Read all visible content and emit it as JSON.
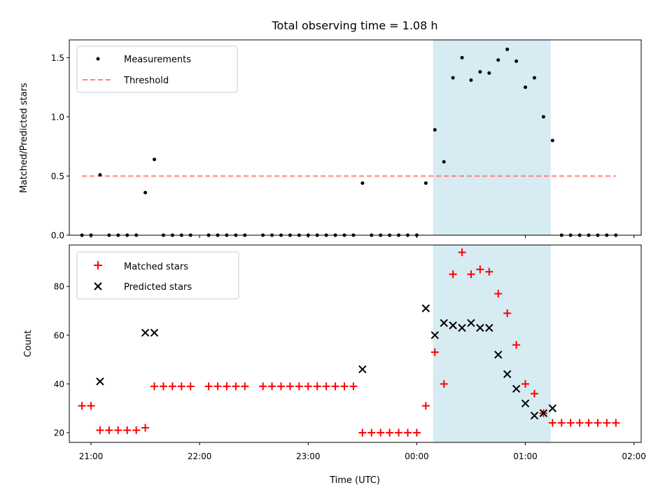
{
  "chart_data": [
    {
      "type": "scatter",
      "title": "Total observing time = 1.08 h",
      "ylabel": "Matched/Predicted stars",
      "xlabel": "",
      "ylim": [
        0,
        1.65
      ],
      "yticks": [
        0.0,
        0.5,
        1.0,
        1.5
      ],
      "ytick_labels": [
        "0.0",
        "0.5",
        "1.0",
        "1.5"
      ],
      "x_unit": "hours after 21:00 UTC",
      "x_range": [
        "20:48",
        "02:04"
      ],
      "xtick_labels": [
        "21:00",
        "22:00",
        "23:00",
        "00:00",
        "01:00",
        "02:00"
      ],
      "shaded_interval": [
        "00:09",
        "01:14"
      ],
      "shade_color": "#add8e6",
      "legend_position": "upper left",
      "series": [
        {
          "name": "Measurements",
          "marker": "dot",
          "color": "#000000",
          "points": [
            [
              "20:55",
              0.0
            ],
            [
              "21:00",
              0.0
            ],
            [
              "21:05",
              0.51
            ],
            [
              "21:10",
              0.0
            ],
            [
              "21:15",
              0.0
            ],
            [
              "21:20",
              0.0
            ],
            [
              "21:25",
              0.0
            ],
            [
              "21:30",
              0.36
            ],
            [
              "21:35",
              0.64
            ],
            [
              "21:40",
              0.0
            ],
            [
              "21:45",
              0.0
            ],
            [
              "21:50",
              0.0
            ],
            [
              "21:55",
              0.0
            ],
            [
              "22:05",
              0.0
            ],
            [
              "22:10",
              0.0
            ],
            [
              "22:15",
              0.0
            ],
            [
              "22:20",
              0.0
            ],
            [
              "22:25",
              0.0
            ],
            [
              "22:35",
              0.0
            ],
            [
              "22:40",
              0.0
            ],
            [
              "22:45",
              0.0
            ],
            [
              "22:50",
              0.0
            ],
            [
              "22:55",
              0.0
            ],
            [
              "23:00",
              0.0
            ],
            [
              "23:05",
              0.0
            ],
            [
              "23:10",
              0.0
            ],
            [
              "23:15",
              0.0
            ],
            [
              "23:20",
              0.0
            ],
            [
              "23:25",
              0.0
            ],
            [
              "23:30",
              0.44
            ],
            [
              "23:35",
              0.0
            ],
            [
              "23:40",
              0.0
            ],
            [
              "23:45",
              0.0
            ],
            [
              "23:50",
              0.0
            ],
            [
              "23:55",
              0.0
            ],
            [
              "00:00",
              0.0
            ],
            [
              "00:05",
              0.44
            ],
            [
              "00:10",
              0.89
            ],
            [
              "00:15",
              0.62
            ],
            [
              "00:20",
              1.33
            ],
            [
              "00:25",
              1.5
            ],
            [
              "00:30",
              1.31
            ],
            [
              "00:35",
              1.38
            ],
            [
              "00:40",
              1.37
            ],
            [
              "00:45",
              1.48
            ],
            [
              "00:50",
              1.57
            ],
            [
              "00:55",
              1.47
            ],
            [
              "01:00",
              1.25
            ],
            [
              "01:05",
              1.33
            ],
            [
              "01:10",
              1.0
            ],
            [
              "01:15",
              0.8
            ],
            [
              "01:20",
              0.0
            ],
            [
              "01:25",
              0.0
            ],
            [
              "01:30",
              0.0
            ],
            [
              "01:35",
              0.0
            ],
            [
              "01:40",
              0.0
            ],
            [
              "01:45",
              0.0
            ],
            [
              "01:50",
              0.0
            ]
          ]
        },
        {
          "name": "Threshold",
          "marker": "dashed-line",
          "color": "#ff7f7f",
          "points": [
            [
              "20:55",
              0.5
            ],
            [
              "01:50",
              0.5
            ]
          ]
        }
      ]
    },
    {
      "type": "scatter",
      "title": "",
      "ylabel": "Count",
      "xlabel": "Time (UTC)",
      "ylim": [
        16,
        97
      ],
      "yticks": [
        20,
        40,
        60,
        80
      ],
      "ytick_labels": [
        "20",
        "40",
        "60",
        "80"
      ],
      "x_unit": "hours after 21:00 UTC",
      "x_range": [
        "20:48",
        "02:04"
      ],
      "xtick_labels": [
        "21:00",
        "22:00",
        "23:00",
        "00:00",
        "01:00",
        "02:00"
      ],
      "shaded_interval": [
        "00:09",
        "01:14"
      ],
      "shade_color": "#add8e6",
      "legend_position": "upper left",
      "series": [
        {
          "name": "Matched stars",
          "marker": "plus",
          "color": "#ff0000",
          "points": [
            [
              "20:55",
              31
            ],
            [
              "21:00",
              31
            ],
            [
              "21:05",
              21
            ],
            [
              "21:10",
              21
            ],
            [
              "21:15",
              21
            ],
            [
              "21:20",
              21
            ],
            [
              "21:25",
              21
            ],
            [
              "21:30",
              22
            ],
            [
              "21:35",
              39
            ],
            [
              "21:40",
              39
            ],
            [
              "21:45",
              39
            ],
            [
              "21:50",
              39
            ],
            [
              "21:55",
              39
            ],
            [
              "22:05",
              39
            ],
            [
              "22:10",
              39
            ],
            [
              "22:15",
              39
            ],
            [
              "22:20",
              39
            ],
            [
              "22:25",
              39
            ],
            [
              "22:35",
              39
            ],
            [
              "22:40",
              39
            ],
            [
              "22:45",
              39
            ],
            [
              "22:50",
              39
            ],
            [
              "22:55",
              39
            ],
            [
              "23:00",
              39
            ],
            [
              "23:05",
              39
            ],
            [
              "23:10",
              39
            ],
            [
              "23:15",
              39
            ],
            [
              "23:20",
              39
            ],
            [
              "23:25",
              39
            ],
            [
              "23:30",
              20
            ],
            [
              "23:35",
              20
            ],
            [
              "23:40",
              20
            ],
            [
              "23:45",
              20
            ],
            [
              "23:50",
              20
            ],
            [
              "23:55",
              20
            ],
            [
              "00:00",
              20
            ],
            [
              "00:05",
              31
            ],
            [
              "00:10",
              53
            ],
            [
              "00:15",
              40
            ],
            [
              "00:20",
              85
            ],
            [
              "00:25",
              94
            ],
            [
              "00:30",
              85
            ],
            [
              "00:35",
              87
            ],
            [
              "00:40",
              86
            ],
            [
              "00:45",
              77
            ],
            [
              "00:50",
              69
            ],
            [
              "00:55",
              56
            ],
            [
              "01:00",
              40
            ],
            [
              "01:05",
              36
            ],
            [
              "01:10",
              28
            ],
            [
              "01:15",
              24
            ],
            [
              "01:20",
              24
            ],
            [
              "01:25",
              24
            ],
            [
              "01:30",
              24
            ],
            [
              "01:35",
              24
            ],
            [
              "01:40",
              24
            ],
            [
              "01:45",
              24
            ],
            [
              "01:50",
              24
            ]
          ]
        },
        {
          "name": "Predicted stars",
          "marker": "x",
          "color": "#000000",
          "points": [
            [
              "21:05",
              41
            ],
            [
              "21:30",
              61
            ],
            [
              "21:35",
              61
            ],
            [
              "23:30",
              46
            ],
            [
              "00:05",
              71
            ],
            [
              "00:10",
              60
            ],
            [
              "00:15",
              65
            ],
            [
              "00:20",
              64
            ],
            [
              "00:25",
              63
            ],
            [
              "00:30",
              65
            ],
            [
              "00:35",
              63
            ],
            [
              "00:40",
              63
            ],
            [
              "00:45",
              52
            ],
            [
              "00:50",
              44
            ],
            [
              "00:55",
              38
            ],
            [
              "01:00",
              32
            ],
            [
              "01:05",
              27
            ],
            [
              "01:10",
              28
            ],
            [
              "01:15",
              30
            ]
          ]
        }
      ]
    }
  ]
}
